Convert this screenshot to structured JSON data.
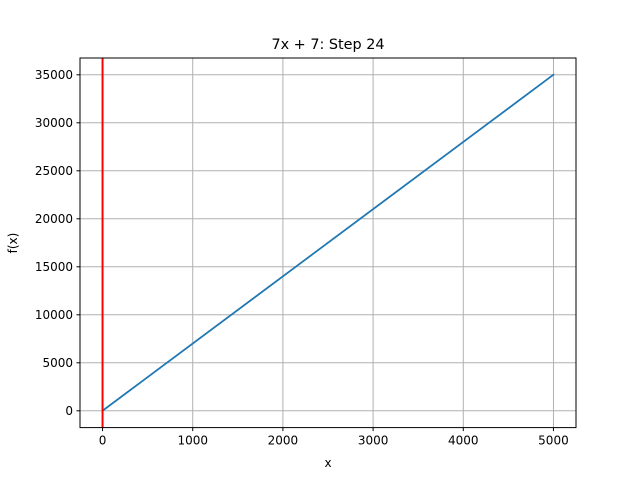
{
  "chart_data": {
    "type": "line",
    "title": "7x + 7: Step 24",
    "xlabel": "x",
    "ylabel": "f(x)",
    "xlim": [
      -250,
      5250
    ],
    "ylim": [
      -1750,
      36750
    ],
    "x_ticks": [
      0,
      1000,
      2000,
      3000,
      4000,
      5000
    ],
    "y_ticks": [
      0,
      5000,
      10000,
      15000,
      20000,
      25000,
      30000,
      35000
    ],
    "grid": true,
    "series": [
      {
        "color": "#1f77b4",
        "x": [
          0,
          5000
        ],
        "y": [
          7,
          35007
        ]
      }
    ],
    "vertical_line": {
      "x": 0,
      "color": "#ff0000"
    }
  }
}
